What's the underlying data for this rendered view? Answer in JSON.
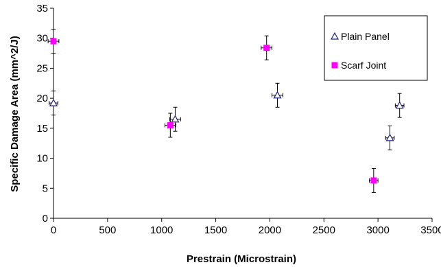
{
  "chart_data": {
    "type": "scatter",
    "title": "",
    "xlabel": "Prestrain (Microstrain)",
    "ylabel": "Specific Damage Area (mm^2/J)",
    "xlim": [
      0,
      3500
    ],
    "ylim": [
      0,
      35
    ],
    "xticks": [
      0,
      500,
      1000,
      1500,
      2000,
      2500,
      3000,
      3500
    ],
    "yticks": [
      0,
      5,
      10,
      15,
      20,
      25,
      30,
      35
    ],
    "grid": false,
    "legend_position": "top-right",
    "series": [
      {
        "name": "Plain Panel",
        "marker": "open-triangle",
        "color": "#1f1f7a",
        "points": [
          {
            "x": 0,
            "y": 19.2,
            "xerr": 40,
            "yerr": 2.0
          },
          {
            "x": 1125,
            "y": 16.5,
            "xerr": 50,
            "yerr": 2.0
          },
          {
            "x": 2070,
            "y": 20.5,
            "xerr": 50,
            "yerr": 2.0
          },
          {
            "x": 3110,
            "y": 13.4,
            "xerr": 40,
            "yerr": 2.0
          },
          {
            "x": 3200,
            "y": 18.8,
            "xerr": 40,
            "yerr": 2.0
          }
        ]
      },
      {
        "name": "Scarf Joint",
        "marker": "filled-square",
        "color": "#ff00ff",
        "points": [
          {
            "x": 0,
            "y": 29.5,
            "xerr": 50,
            "yerr": 2.0
          },
          {
            "x": 1080,
            "y": 15.5,
            "xerr": 50,
            "yerr": 2.0
          },
          {
            "x": 1970,
            "y": 28.4,
            "xerr": 50,
            "yerr": 2.0
          },
          {
            "x": 2960,
            "y": 6.3,
            "xerr": 40,
            "yerr": 2.0
          }
        ]
      }
    ]
  }
}
